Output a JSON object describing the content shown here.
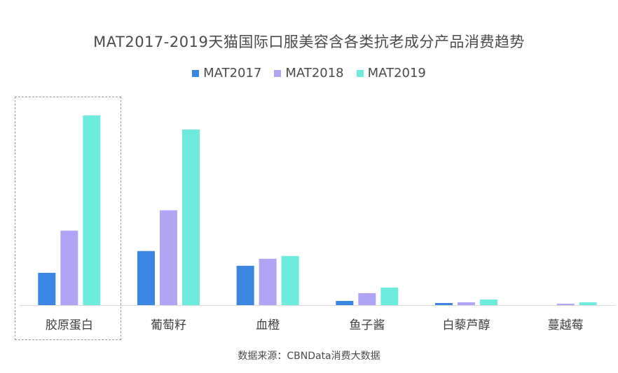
{
  "chart_data": {
    "type": "bar",
    "title": "MAT2017-2019天猫国际口服美容含各类抗老成分产品消费趋势",
    "xlabel": "",
    "ylabel": "",
    "categories": [
      "胶原蛋白",
      "葡萄籽",
      "血橙",
      "鱼子酱",
      "白藜芦醇",
      "蔓越莓"
    ],
    "series": [
      {
        "name": "MAT2017",
        "color": "#3a86e0",
        "values": [
          46,
          77,
          56,
          6,
          3,
          0
        ]
      },
      {
        "name": "MAT2018",
        "color": "#b0a4f5",
        "values": [
          106,
          135,
          66,
          17,
          4,
          2
        ]
      },
      {
        "name": "MAT2019",
        "color": "#6eebdf",
        "values": [
          270,
          250,
          70,
          25,
          8,
          4
        ]
      }
    ],
    "ylim": [
      0,
      300
    ],
    "grid": false,
    "legend_position": "top-center",
    "highlighted_category": "胶原蛋白"
  },
  "source_text": "数据来源：CBNData消费大数据"
}
